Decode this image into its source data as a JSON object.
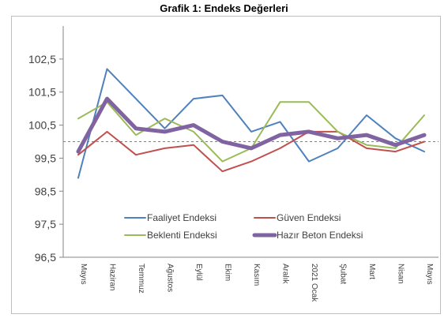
{
  "chart_data": {
    "type": "line",
    "title": "Grafik 1: Endeks Değerleri",
    "xlabel": "",
    "ylabel": "",
    "categories": [
      "Mayıs",
      "Haziran",
      "Temmuz",
      "Ağustos",
      "Eylül",
      "Ekim",
      "Kasım",
      "Aralık",
      "2021 Ocak",
      "Şubat",
      "Mart",
      "Nisan",
      "Mayıs"
    ],
    "ylim": [
      96.5,
      103.5
    ],
    "yticks": [
      "96,5",
      "97,5",
      "98,5",
      "99,5",
      "100,5",
      "101,5",
      "102,5"
    ],
    "reference_line": 100,
    "legend_position": "bottom",
    "series": [
      {
        "name": "Faaliyet Endeksi",
        "color": "#4f81bd",
        "width": 2,
        "values": [
          98.9,
          102.2,
          101.3,
          100.4,
          101.3,
          101.4,
          100.3,
          100.6,
          99.4,
          99.8,
          100.8,
          100.1,
          99.7
        ]
      },
      {
        "name": "Güven Endeksi",
        "color": "#c0504d",
        "width": 2,
        "values": [
          99.6,
          100.3,
          99.6,
          99.8,
          99.9,
          99.1,
          99.4,
          99.8,
          100.3,
          100.3,
          99.8,
          99.7,
          100.0
        ]
      },
      {
        "name": "Beklenti Endeksi",
        "color": "#9bbb59",
        "width": 2,
        "values": [
          100.7,
          101.2,
          100.2,
          100.7,
          100.3,
          99.4,
          99.8,
          101.2,
          101.2,
          100.3,
          99.9,
          99.8,
          100.8
        ]
      },
      {
        "name": "Hazır Beton Endeksi",
        "color": "#8064a2",
        "width": 5,
        "values": [
          99.7,
          101.3,
          100.4,
          100.3,
          100.5,
          100.0,
          99.8,
          100.2,
          100.3,
          100.1,
          100.2,
          99.9,
          100.2
        ]
      }
    ]
  }
}
